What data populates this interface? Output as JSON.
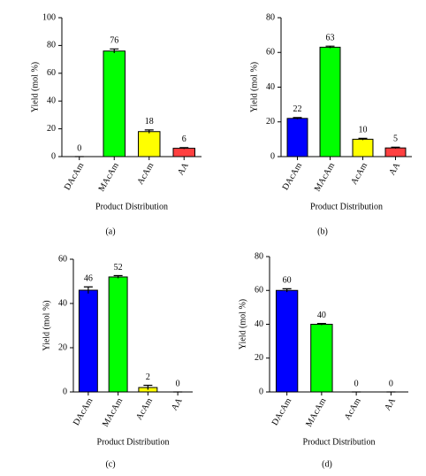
{
  "chart_data": [
    {
      "type": "bar",
      "panel_label": "(a)",
      "xlabel": "Product Distribution",
      "ylabel": "Yield (mol %)",
      "categories": [
        "DAcAm",
        "MAcAm",
        "AcAm",
        "AA"
      ],
      "values": [
        0,
        76,
        18,
        6
      ],
      "errors": [
        0,
        1.5,
        1.2,
        0.5
      ],
      "colors": [
        "#0000ff",
        "#00ff00",
        "#ffff00",
        "#ff4040"
      ],
      "ylim": [
        0,
        100
      ],
      "yticks": [
        0,
        20,
        40,
        60,
        80,
        100
      ]
    },
    {
      "type": "bar",
      "panel_label": "(b)",
      "xlabel": "Product Distribution",
      "ylabel": "Yield (mol %)",
      "categories": [
        "DAcAm",
        "MAcAm",
        "AcAm",
        "AA"
      ],
      "values": [
        22,
        63,
        10,
        5
      ],
      "errors": [
        0.5,
        0.6,
        0.5,
        0.4
      ],
      "colors": [
        "#0000ff",
        "#00ff00",
        "#ffff00",
        "#ff4040"
      ],
      "ylim": [
        0,
        80
      ],
      "yticks": [
        0,
        20,
        40,
        60,
        80
      ]
    },
    {
      "type": "bar",
      "panel_label": "(c)",
      "xlabel": "Product Distribution",
      "ylabel": "Yield (mol %)",
      "categories": [
        "DAcAm",
        "MAcAm",
        "AcAm",
        "AA"
      ],
      "values": [
        46,
        52,
        2,
        0
      ],
      "errors": [
        1.5,
        0.6,
        1.0,
        0
      ],
      "colors": [
        "#0000ff",
        "#00ff00",
        "#ffff00",
        "#ff4040"
      ],
      "ylim": [
        0,
        60
      ],
      "yticks": [
        0,
        20,
        40,
        60
      ]
    },
    {
      "type": "bar",
      "panel_label": "(d)",
      "xlabel": "Product Distribution",
      "ylabel": "Yield (mol %)",
      "categories": [
        "DAcAm",
        "MAcAm",
        "AcAm",
        "AA"
      ],
      "values": [
        60,
        40,
        0,
        0
      ],
      "errors": [
        1.0,
        0.5,
        0,
        0
      ],
      "colors": [
        "#0000ff",
        "#00ff00",
        "#ffff00",
        "#ff4040"
      ],
      "ylim": [
        0,
        80
      ],
      "yticks": [
        0,
        20,
        40,
        60,
        80
      ]
    }
  ]
}
